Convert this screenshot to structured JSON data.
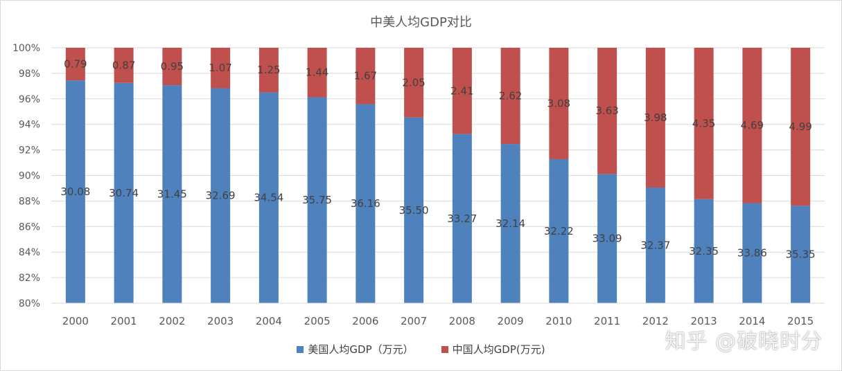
{
  "chart_data": {
    "type": "bar",
    "stacked": "percent",
    "title": "中美人均GDP对比",
    "categories": [
      "2000",
      "2001",
      "2002",
      "2003",
      "2004",
      "2005",
      "2006",
      "2007",
      "2008",
      "2009",
      "2010",
      "2011",
      "2012",
      "2013",
      "2014",
      "2015"
    ],
    "series": [
      {
        "name": "美国人均GDP（万元）",
        "color": "#4f81bd",
        "values": [
          30.08,
          30.74,
          31.45,
          32.69,
          34.54,
          35.75,
          36.16,
          35.5,
          33.27,
          32.14,
          32.22,
          33.09,
          32.37,
          32.35,
          33.86,
          35.35
        ]
      },
      {
        "name": "中国人均GDP(万元)",
        "color": "#c0504d",
        "values": [
          0.79,
          0.87,
          0.95,
          1.07,
          1.25,
          1.44,
          1.67,
          2.05,
          2.41,
          2.62,
          3.08,
          3.63,
          3.98,
          4.35,
          4.69,
          4.99
        ]
      }
    ],
    "yaxis": {
      "min": 0.8,
      "max": 1.0,
      "step": 0.02,
      "ticks": [
        "80%",
        "82%",
        "84%",
        "86%",
        "88%",
        "90%",
        "92%",
        "94%",
        "96%",
        "98%",
        "100%"
      ]
    },
    "grid": true,
    "legend": "bottom"
  },
  "watermark": "知乎 @破晓时分"
}
